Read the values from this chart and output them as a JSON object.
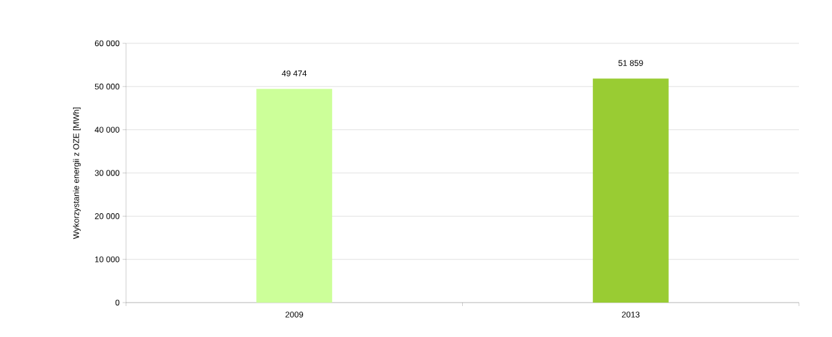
{
  "chart_data": {
    "type": "bar",
    "ylabel": "Wykorzystanie energii z OZE [MWh]",
    "categories": [
      "2009",
      "2013"
    ],
    "values": [
      49474,
      51859
    ],
    "colors": [
      "#ccff99",
      "#99cc33"
    ],
    "value_labels": [
      "49 474",
      "51 859"
    ],
    "ylim": [
      0,
      60000
    ],
    "yticks": [
      {
        "value": 0,
        "label": "0"
      },
      {
        "value": 10000,
        "label": "10 000"
      },
      {
        "value": 20000,
        "label": "20 000"
      },
      {
        "value": 30000,
        "label": "30 000"
      },
      {
        "value": 40000,
        "label": "40 000"
      },
      {
        "value": 50000,
        "label": "50 000"
      },
      {
        "value": 60000,
        "label": "60 000"
      }
    ],
    "grid": "y"
  }
}
